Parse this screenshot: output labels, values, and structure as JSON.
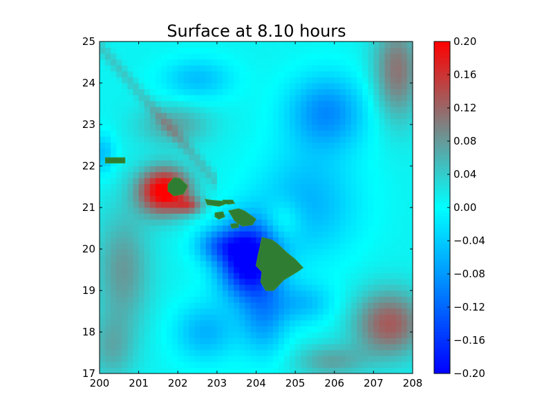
{
  "chart_data": {
    "type": "heatmap",
    "title": "Surface at 8.10 hours",
    "xlabel": "",
    "ylabel": "",
    "xlim": [
      200,
      208
    ],
    "ylim": [
      17,
      25
    ],
    "x_ticks": [
      "200",
      "201",
      "202",
      "203",
      "204",
      "205",
      "206",
      "207",
      "208"
    ],
    "y_ticks": [
      "17",
      "18",
      "19",
      "20",
      "21",
      "22",
      "23",
      "24",
      "25"
    ],
    "colorbar": {
      "vmin": -0.2,
      "vmax": 0.2,
      "ticks": [
        "0.20",
        "0.16",
        "0.12",
        "0.08",
        "0.04",
        "0.00",
        "−0.04",
        "−0.08",
        "−0.12",
        "−0.16",
        "−0.20"
      ],
      "colors": [
        {
          "value": -0.2,
          "color": "#0000ff"
        },
        {
          "value": -0.1,
          "color": "#0080ff"
        },
        {
          "value": 0.0,
          "color": "#00ffff"
        },
        {
          "value": 0.1,
          "color": "#808080"
        },
        {
          "value": 0.2,
          "color": "#ff0000"
        }
      ]
    },
    "land_color": "#2e7d32",
    "grid": false,
    "field_regions": [
      {
        "name": "red lobe west of Kauai",
        "lon": 201.6,
        "lat": 21.4,
        "value": 0.19
      },
      {
        "name": "trough around Big Island",
        "lon": 203.7,
        "lat": 19.7,
        "value": -0.2
      },
      {
        "name": "positive southeast",
        "lon": 207.4,
        "lat": 18.2,
        "value": 0.12
      },
      {
        "name": "negative north",
        "lon": 205.8,
        "lat": 23.4,
        "value": -0.09
      },
      {
        "name": "positive northeast corner",
        "lon": 207.8,
        "lat": 24.0,
        "value": 0.1
      },
      {
        "name": "positive west",
        "lon": 200.4,
        "lat": 19.5,
        "value": 0.09
      }
    ],
    "islands": [
      {
        "name": "Niihau",
        "lon": 200.3,
        "lat": 22.1
      },
      {
        "name": "Kauai",
        "lon": 202.0,
        "lat": 21.45
      },
      {
        "name": "Oahu",
        "lon": 202.9,
        "lat": 21.1
      },
      {
        "name": "Molokai",
        "lon": 203.0,
        "lat": 21.0
      },
      {
        "name": "Lanai",
        "lon": 203.1,
        "lat": 20.82
      },
      {
        "name": "Maui",
        "lon": 203.7,
        "lat": 20.75
      },
      {
        "name": "Kahoolawe",
        "lon": 203.4,
        "lat": 20.55
      },
      {
        "name": "Hawaii",
        "lon": 204.5,
        "lat": 19.6
      }
    ]
  }
}
